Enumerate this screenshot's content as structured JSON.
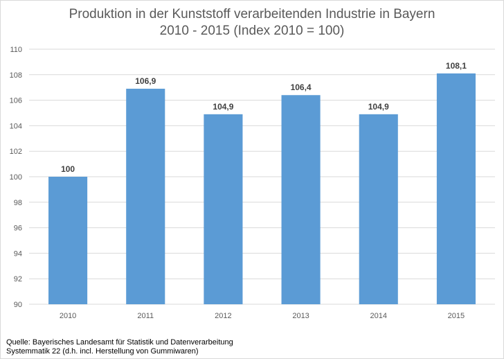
{
  "chart_data": {
    "type": "bar",
    "title": "Produktion in der Kunststoff verarbeitenden Industrie in Bayern",
    "subtitle": "2010 - 2015 (Index 2010 = 100)",
    "categories": [
      "2010",
      "2011",
      "2012",
      "2013",
      "2014",
      "2015"
    ],
    "values": [
      100,
      106.9,
      104.9,
      106.4,
      104.9,
      108.1
    ],
    "data_labels": [
      "100",
      "106,9",
      "104,9",
      "106,4",
      "104,9",
      "108,1"
    ],
    "ylim": [
      90,
      110
    ],
    "yticks": [
      90,
      92,
      94,
      96,
      98,
      100,
      102,
      104,
      106,
      108,
      110
    ],
    "xlabel": "",
    "ylabel": "",
    "grid": true,
    "legend": "none",
    "colors": {
      "bar": "#5b9bd5",
      "grid": "#d9d9d9",
      "axis_text": "#595959",
      "label_text": "#404040"
    }
  },
  "source": {
    "line1": "Quelle:  Bayerisches Landesamt für Statistik und Datenverarbeitung",
    "line2": "Systemmatik 22 (d.h. incl. Herstellung von Gummiwaren)"
  }
}
